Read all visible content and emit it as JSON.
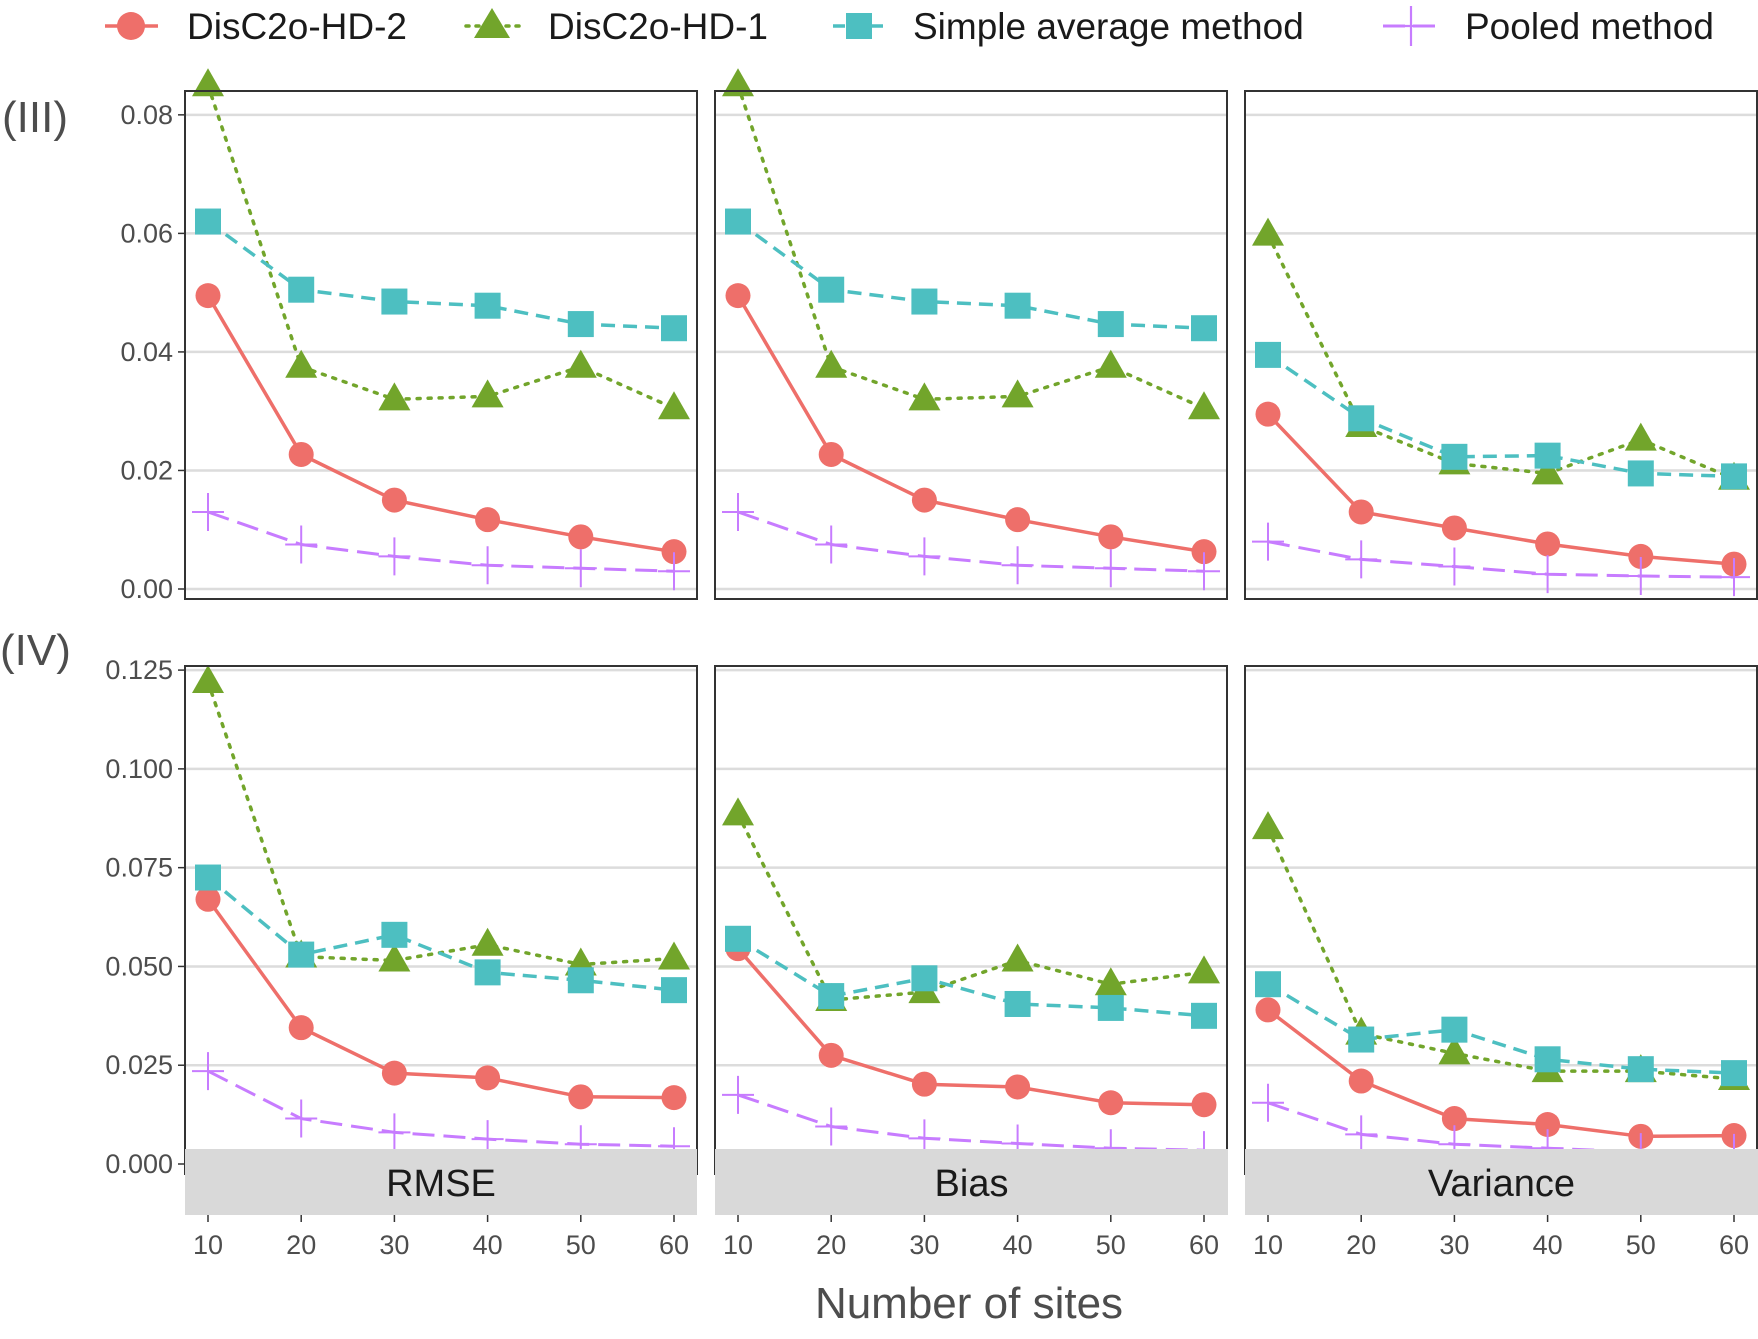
{
  "chart_data": {
    "type": "line",
    "xlabel": "Number of sites",
    "x": [
      10,
      20,
      30,
      40,
      50,
      60
    ],
    "x_ticks": [
      "10",
      "20",
      "30",
      "40",
      "50",
      "60"
    ],
    "columns": [
      "RMSE",
      "Bias",
      "Variance"
    ],
    "legend_position": "top",
    "grid": "horizontal",
    "series_styles": [
      {
        "name": "DisC2o-HD-2",
        "color": "#ee6f6a",
        "marker": "circle",
        "dash": "solid"
      },
      {
        "name": "DisC2o-HD-1",
        "color": "#72a52b",
        "marker": "triangle",
        "dash": "dotted"
      },
      {
        "name": "Simple average method",
        "color": "#4dbfc1",
        "marker": "square",
        "dash": "dashed"
      },
      {
        "name": "Pooled method",
        "color": "#c77cff",
        "marker": "plus",
        "dash": "longdash"
      }
    ],
    "rows": [
      {
        "label": "(III)",
        "ylim": [
          0,
          0.082
        ],
        "y_ticks": [
          "0.00",
          "0.02",
          "0.04",
          "0.06",
          "0.08"
        ],
        "y_tick_values": [
          0,
          0.02,
          0.04,
          0.06,
          0.08
        ],
        "panels": [
          {
            "series": [
              {
                "name": "DisC2o-HD-2",
                "values": [
                  0.0495,
                  0.0227,
                  0.015,
                  0.0117,
                  0.0088,
                  0.0063
                ]
              },
              {
                "name": "DisC2o-HD-1",
                "values": [
                  0.085,
                  0.0375,
                  0.032,
                  0.0325,
                  0.0375,
                  0.0305
                ]
              },
              {
                "name": "Simple average method",
                "values": [
                  0.062,
                  0.0505,
                  0.0485,
                  0.0478,
                  0.0447,
                  0.044
                ]
              },
              {
                "name": "Pooled method",
                "values": [
                  0.013,
                  0.0075,
                  0.0055,
                  0.004,
                  0.0035,
                  0.003
                ]
              }
            ]
          },
          {
            "series": [
              {
                "name": "DisC2o-HD-2",
                "values": [
                  0.0495,
                  0.0227,
                  0.015,
                  0.0117,
                  0.0088,
                  0.0063
                ]
              },
              {
                "name": "DisC2o-HD-1",
                "values": [
                  0.085,
                  0.0375,
                  0.032,
                  0.0325,
                  0.0375,
                  0.0305
                ]
              },
              {
                "name": "Simple average method",
                "values": [
                  0.062,
                  0.0505,
                  0.0485,
                  0.0478,
                  0.0447,
                  0.044
                ]
              },
              {
                "name": "Pooled method",
                "values": [
                  0.013,
                  0.0075,
                  0.0055,
                  0.004,
                  0.0035,
                  0.003
                ]
              }
            ]
          },
          {
            "series": [
              {
                "name": "DisC2o-HD-2",
                "values": [
                  0.0295,
                  0.013,
                  0.0103,
                  0.0076,
                  0.0055,
                  0.0042
                ]
              },
              {
                "name": "DisC2o-HD-1",
                "values": [
                  0.0598,
                  0.0275,
                  0.0212,
                  0.0195,
                  0.0252,
                  0.0186
                ]
              },
              {
                "name": "Simple average method",
                "values": [
                  0.0395,
                  0.0288,
                  0.0223,
                  0.0225,
                  0.0195,
                  0.019
                ]
              },
              {
                "name": "Pooled method",
                "values": [
                  0.008,
                  0.005,
                  0.0038,
                  0.0025,
                  0.0022,
                  0.002
                ]
              }
            ]
          }
        ]
      },
      {
        "label": "(IV)",
        "ylim": [
          0,
          0.123
        ],
        "y_ticks": [
          "0.000",
          "0.025",
          "0.050",
          "0.075",
          "0.100",
          "0.125"
        ],
        "y_tick_values": [
          0,
          0.025,
          0.05,
          0.075,
          0.1,
          0.125
        ],
        "panels": [
          {
            "series": [
              {
                "name": "DisC2o-HD-2",
                "values": [
                  0.067,
                  0.0345,
                  0.023,
                  0.0218,
                  0.017,
                  0.0168
                ]
              },
              {
                "name": "DisC2o-HD-1",
                "values": [
                  0.122,
                  0.0525,
                  0.0515,
                  0.0555,
                  0.0505,
                  0.052
                ]
              },
              {
                "name": "Simple average method",
                "values": [
                  0.0725,
                  0.053,
                  0.058,
                  0.0485,
                  0.0465,
                  0.044
                ]
              },
              {
                "name": "Pooled method",
                "values": [
                  0.0235,
                  0.0115,
                  0.008,
                  0.0063,
                  0.005,
                  0.0045
                ]
              }
            ]
          },
          {
            "series": [
              {
                "name": "DisC2o-HD-2",
                "values": [
                  0.0545,
                  0.0275,
                  0.0202,
                  0.0195,
                  0.0155,
                  0.015
                ]
              },
              {
                "name": "DisC2o-HD-1",
                "values": [
                  0.0885,
                  0.0415,
                  0.0435,
                  0.0515,
                  0.0455,
                  0.0485
                ]
              },
              {
                "name": "Simple average method",
                "values": [
                  0.057,
                  0.0425,
                  0.047,
                  0.0405,
                  0.0395,
                  0.0375
                ]
              },
              {
                "name": "Pooled method",
                "values": [
                  0.0175,
                  0.0095,
                  0.0065,
                  0.0052,
                  0.004,
                  0.0035
                ]
              }
            ]
          },
          {
            "series": [
              {
                "name": "DisC2o-HD-2",
                "values": [
                  0.039,
                  0.021,
                  0.0115,
                  0.01,
                  0.007,
                  0.0072
                ]
              },
              {
                "name": "DisC2o-HD-1",
                "values": [
                  0.085,
                  0.033,
                  0.028,
                  0.0235,
                  0.0235,
                  0.0215
                ]
              },
              {
                "name": "Simple average method",
                "values": [
                  0.0455,
                  0.0315,
                  0.034,
                  0.0265,
                  0.024,
                  0.023
                ]
              },
              {
                "name": "Pooled method",
                "values": [
                  0.0155,
                  0.0075,
                  0.005,
                  0.004,
                  0.003,
                  0.0028
                ]
              }
            ]
          }
        ]
      }
    ]
  }
}
